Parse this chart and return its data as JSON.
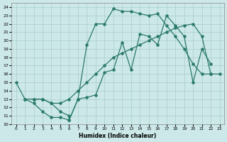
{
  "xlabel": "Humidex (Indice chaleur)",
  "xlim": [
    -0.5,
    23.5
  ],
  "ylim": [
    10,
    24.5
  ],
  "xticks": [
    0,
    1,
    2,
    3,
    4,
    5,
    6,
    7,
    8,
    9,
    10,
    11,
    12,
    13,
    14,
    15,
    16,
    17,
    18,
    19,
    20,
    21,
    22,
    23
  ],
  "yticks": [
    10,
    11,
    12,
    13,
    14,
    15,
    16,
    17,
    18,
    19,
    20,
    21,
    22,
    23,
    24
  ],
  "bg_color": "#cce8e8",
  "grid_color": "#aacccc",
  "line_color": "#2a7a68",
  "curve1_x": [
    0,
    1,
    2,
    3,
    4,
    5,
    6,
    7,
    8,
    9,
    10,
    11,
    12,
    13,
    14,
    15,
    16,
    17,
    18,
    19,
    20,
    21,
    22
  ],
  "curve1_y": [
    15,
    13,
    12.5,
    11.5,
    10.8,
    10.8,
    10.5,
    13.0,
    19.5,
    22.0,
    22.0,
    23.8,
    23.5,
    23.5,
    23.2,
    23.0,
    23.2,
    21.8,
    20.5,
    19.0,
    17.2,
    16.0,
    16.0
  ],
  "curve2_x": [
    1,
    2,
    3,
    4,
    5,
    6,
    7,
    8,
    9,
    10,
    11,
    12,
    13,
    14,
    15,
    16,
    17,
    18,
    19,
    20,
    21,
    22,
    23
  ],
  "curve2_y": [
    13,
    13,
    13,
    12.5,
    12.5,
    13.0,
    14.0,
    15.0,
    16.0,
    17.0,
    18.0,
    18.5,
    19.0,
    19.5,
    20.0,
    20.5,
    21.0,
    21.5,
    21.8,
    22.0,
    20.5,
    16.0,
    16.0
  ],
  "curve3_x": [
    2,
    3,
    4,
    5,
    6,
    6,
    7,
    8,
    9,
    10,
    11,
    12,
    13,
    14,
    15,
    16,
    17,
    18,
    19,
    20,
    21,
    22
  ],
  "curve3_y": [
    13,
    13,
    12.5,
    11.5,
    11.0,
    10.5,
    13.0,
    13.2,
    13.5,
    16.2,
    16.5,
    19.8,
    16.5,
    20.8,
    20.5,
    19.5,
    23.0,
    21.8,
    20.5,
    15.0,
    19.0,
    17.2
  ]
}
